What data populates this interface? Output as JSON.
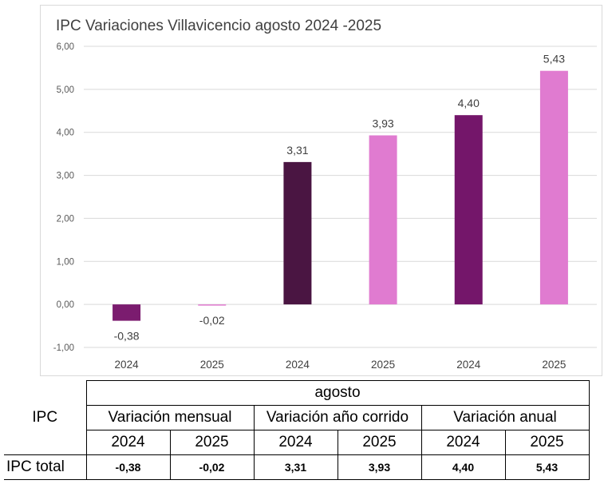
{
  "chart_data": {
    "type": "bar",
    "title": "IPC Variaciones Villavicencio agosto  2024 -2025",
    "categories": [
      "2024",
      "2025",
      "2024",
      "2025",
      "2024",
      "2025"
    ],
    "values": [
      -0.38,
      -0.02,
      3.31,
      3.93,
      4.4,
      5.43
    ],
    "value_labels": [
      "-0,38",
      "-0,02",
      "3,31",
      "3,93",
      "4,40",
      "5,43"
    ],
    "bar_colors": [
      "#7b1c6f",
      "#e07bd0",
      "#4a1542",
      "#e07bd0",
      "#74166a",
      "#e07bd0"
    ],
    "ylim": [
      -1.0,
      6.0
    ],
    "yticks": [
      6.0,
      5.0,
      4.0,
      3.0,
      2.0,
      1.0,
      0.0,
      -1.0
    ],
    "ytick_labels": [
      "6,00",
      "5,00",
      "4,00",
      "3,00",
      "2,00",
      "1,00",
      "0,00",
      "-1,00"
    ],
    "grid": true,
    "xlabel": "",
    "ylabel": ""
  },
  "table": {
    "row_header": "IPC",
    "group_header": "agosto",
    "subgroups": [
      "Variación mensual",
      "Variación año corrido",
      "Variación anual"
    ],
    "years": [
      "2024",
      "2025",
      "2024",
      "2025",
      "2024",
      "2025"
    ],
    "row_label": "IPC total",
    "row_values": [
      "-0,38",
      "-0,02",
      "3,31",
      "3,93",
      "4,40",
      "5,43"
    ]
  }
}
